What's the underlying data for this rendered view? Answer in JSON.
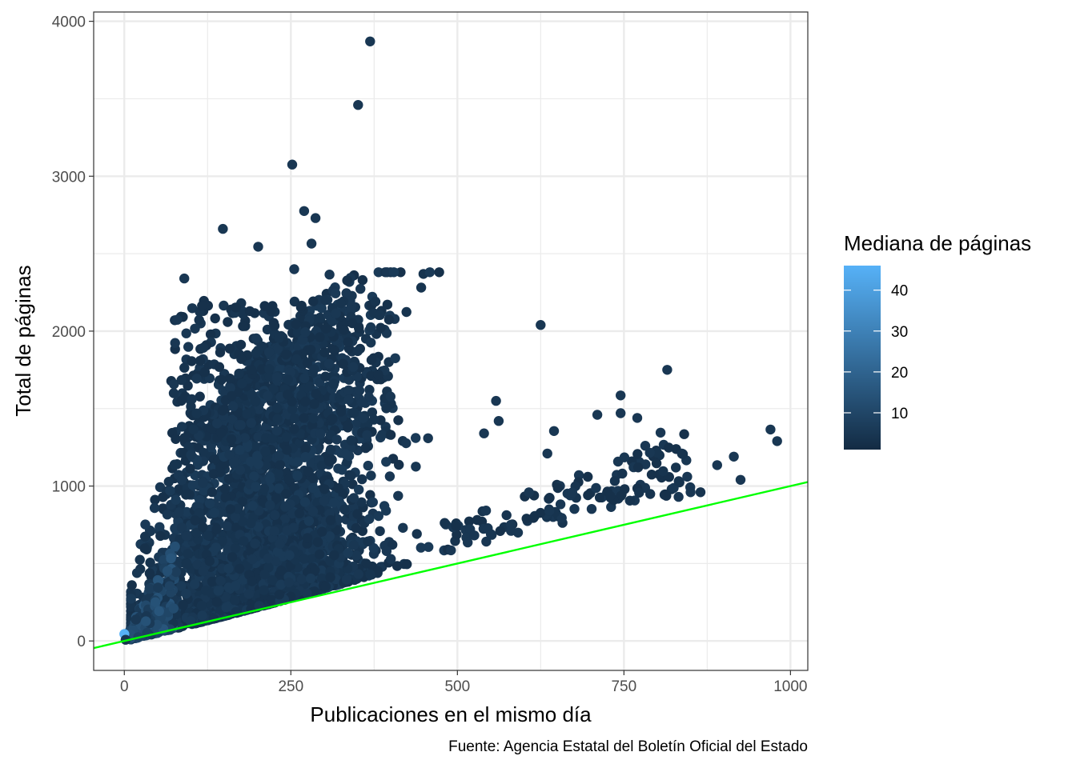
{
  "chart_data": {
    "type": "scatter",
    "title": "",
    "xlabel": "Publicaciones en el mismo día",
    "ylabel": "Total de páginas",
    "caption": "Fuente: Agencia Estatal del Boletín Oficial del Estado",
    "xlim": [
      -46,
      1026
    ],
    "ylim": [
      -190,
      4060
    ],
    "x_ticks": [
      0,
      250,
      500,
      750,
      1000
    ],
    "x_tick_labels": [
      "0",
      "250",
      "500",
      "750",
      "1000"
    ],
    "y_ticks": [
      0,
      1000,
      2000,
      3000,
      4000
    ],
    "y_tick_labels": [
      "0",
      "1000",
      "2000",
      "3000",
      "4000"
    ],
    "grid": true,
    "legend": {
      "title": "Mediana de páginas",
      "placement": "right",
      "range": [
        1,
        46
      ],
      "ticks": [
        10,
        20,
        30,
        40
      ],
      "tick_labels": [
        "10",
        "20",
        "30",
        "40"
      ],
      "low_color": "#132B43",
      "high_color": "#56B1F7"
    },
    "reference_line": {
      "slope": 1,
      "intercept": 0,
      "color": "#00ff00"
    },
    "point_color": "#132B43",
    "outlier_points": [
      {
        "x": 369,
        "y": 3870,
        "c": 5
      },
      {
        "x": 351,
        "y": 3460,
        "c": 5
      },
      {
        "x": 252,
        "y": 3075,
        "c": 5
      },
      {
        "x": 270,
        "y": 2775,
        "c": 5
      },
      {
        "x": 287,
        "y": 2730,
        "c": 5
      },
      {
        "x": 148,
        "y": 2660,
        "c": 5
      },
      {
        "x": 281,
        "y": 2565,
        "c": 5
      },
      {
        "x": 201,
        "y": 2545,
        "c": 5
      },
      {
        "x": 255,
        "y": 2400,
        "c": 5
      },
      {
        "x": 308,
        "y": 2365,
        "c": 5
      },
      {
        "x": 90,
        "y": 2340,
        "c": 5
      },
      {
        "x": 625,
        "y": 2040,
        "c": 5
      },
      {
        "x": 370,
        "y": 2025,
        "c": 5
      },
      {
        "x": 815,
        "y": 1750,
        "c": 5
      },
      {
        "x": 745,
        "y": 1585,
        "c": 5
      },
      {
        "x": 558,
        "y": 1550,
        "c": 5
      },
      {
        "x": 745,
        "y": 1470,
        "c": 5
      },
      {
        "x": 710,
        "y": 1460,
        "c": 5
      },
      {
        "x": 770,
        "y": 1440,
        "c": 5
      },
      {
        "x": 562,
        "y": 1420,
        "c": 5
      },
      {
        "x": 970,
        "y": 1365,
        "c": 5
      },
      {
        "x": 645,
        "y": 1355,
        "c": 5
      },
      {
        "x": 805,
        "y": 1345,
        "c": 5
      },
      {
        "x": 540,
        "y": 1340,
        "c": 5
      },
      {
        "x": 980,
        "y": 1290,
        "c": 5
      },
      {
        "x": 782,
        "y": 1260,
        "c": 5
      },
      {
        "x": 915,
        "y": 1190,
        "c": 5
      },
      {
        "x": 635,
        "y": 1210,
        "c": 5
      },
      {
        "x": 890,
        "y": 1135,
        "c": 5
      },
      {
        "x": 925,
        "y": 1040,
        "c": 5
      },
      {
        "x": 845,
        "y": 1060,
        "c": 5
      },
      {
        "x": 850,
        "y": 960,
        "c": 5
      },
      {
        "x": 832,
        "y": 930,
        "c": 5
      },
      {
        "x": 865,
        "y": 960,
        "c": 4
      },
      {
        "x": 0,
        "y": 45,
        "c": 46
      },
      {
        "x": 2,
        "y": 8,
        "c": 4
      }
    ]
  }
}
